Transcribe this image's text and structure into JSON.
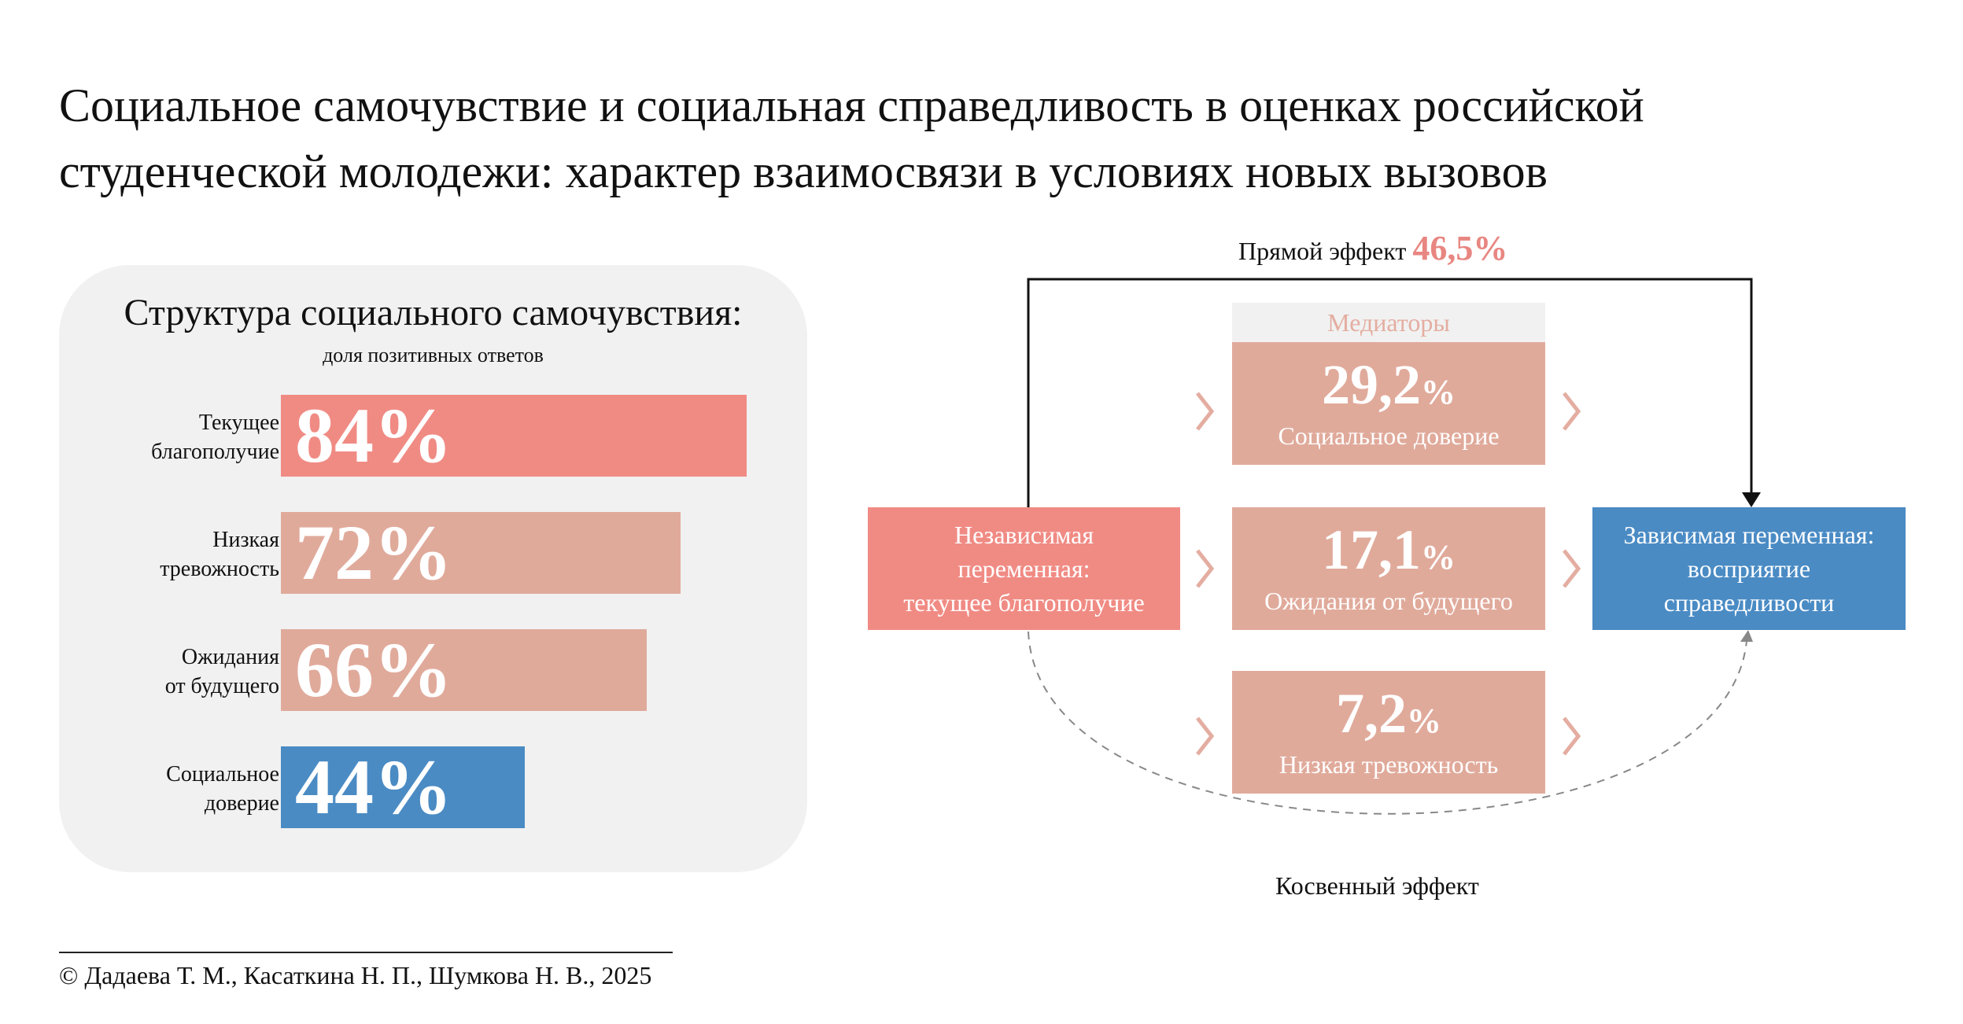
{
  "title_line1": "Социальное самочувствие и социальная справедливость в оценках российской",
  "title_line2": "студенческой молодежи: характер взаимосвязи в условиях новых вызовов",
  "chart_data": [
    {
      "type": "bar",
      "orientation": "horizontal",
      "title": "Структура социального самочувствия:",
      "subtitle": "доля позитивных ответов",
      "categories": [
        [
          "Текущее",
          "благополучие"
        ],
        [
          "Низкая",
          "тревожность"
        ],
        [
          "Ожидания",
          "от будущего"
        ],
        [
          "Социальное",
          "доверие"
        ]
      ],
      "values": [
        84,
        72,
        66,
        44
      ],
      "value_labels": [
        "84%",
        "72%",
        "66%",
        "44%"
      ],
      "colors": [
        "#f08b84",
        "#e0aa9b",
        "#e0aa9b",
        "#4a8bc4"
      ],
      "xlim": [
        0,
        100
      ],
      "grid": false
    },
    {
      "type": "diagram",
      "direct_effect": {
        "label": "Прямой эффект",
        "value": "46,5%"
      },
      "indirect_effect": {
        "label": "Косвенный эффект"
      },
      "independent": [
        "Независимая",
        "переменная:",
        "текущее благополучие"
      ],
      "dependent": [
        "Зависимая переменная:",
        "восприятие",
        "справедливости"
      ],
      "mediators_title": "Медиаторы",
      "mediators": [
        {
          "num": "29,2",
          "pct": "%",
          "name": "Социальное доверие",
          "value": 29.2
        },
        {
          "num": "17,1",
          "pct": "%",
          "name": "Ожидания от будущего",
          "value": 17.1
        },
        {
          "num": "7,2",
          "pct": "%",
          "name": "Низкая тревожность",
          "value": 7.2
        }
      ],
      "colors": {
        "independent": "#f08b84",
        "dependent": "#4a8bc4",
        "mediator": "#e0aa9b",
        "chevron": "#e4ada1",
        "direct_value": "#e88681"
      }
    }
  ],
  "footer": "© Дадаева Т. М., Касаткина Н. П., Шумкова Н. В., 2025"
}
